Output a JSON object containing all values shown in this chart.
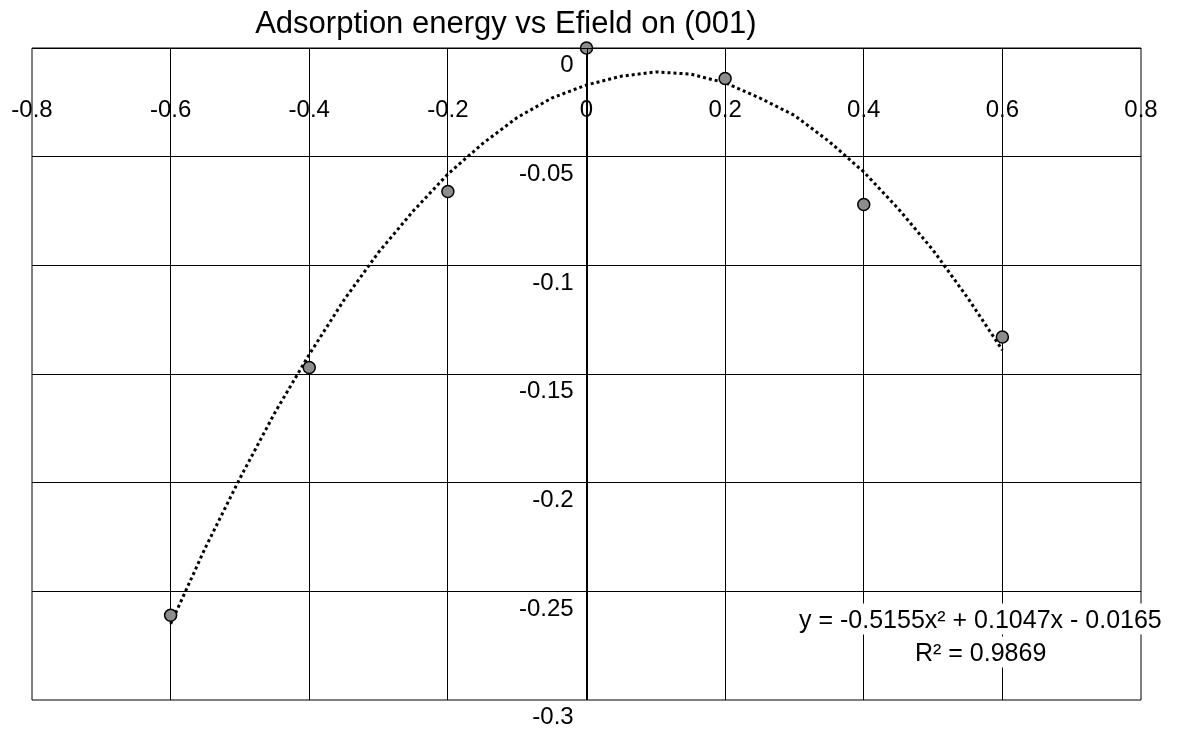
{
  "chart_data": {
    "type": "scatter",
    "title": "Adsorption energy vs Efield on (001)",
    "x": [
      -0.6,
      -0.4,
      -0.2,
      0,
      0.2,
      0.4,
      0.6
    ],
    "series": [
      {
        "color": "#8c8c8c",
        "marker": "circle",
        "values": [
          -0.261,
          -0.147,
          -0.066,
          0,
          -0.014,
          -0.072,
          -0.133
        ]
      },
      {
        "type": "line",
        "color": "#000000",
        "marker": "none",
        "line_style": "dotted",
        "x": [
          -0.6,
          -0.55,
          -0.5,
          -0.45,
          -0.4,
          -0.35,
          -0.3,
          -0.25,
          -0.2,
          -0.15,
          -0.1,
          -0.05,
          0,
          0.05,
          0.1,
          0.15,
          0.2,
          0.25,
          0.3,
          0.35,
          0.4,
          0.45,
          0.5,
          0.55,
          0.6
        ],
        "values": [
          -0.265,
          -0.23,
          -0.198,
          -0.168,
          -0.141,
          -0.116,
          -0.094,
          -0.075,
          -0.058,
          -0.044,
          -0.032,
          -0.023,
          -0.017,
          -0.013,
          -0.011,
          -0.012,
          -0.016,
          -0.023,
          -0.031,
          -0.043,
          -0.057,
          -0.074,
          -0.093,
          -0.115,
          -0.139
        ]
      }
    ],
    "xlim": [
      -0.8,
      0.8
    ],
    "xticks": [
      -0.8,
      -0.6,
      -0.4,
      -0.2,
      0,
      0.2,
      0.4,
      0.6,
      0.8
    ],
    "ylim": [
      -0.3,
      0
    ],
    "yticks": [
      0,
      -0.05,
      -0.1,
      -0.15,
      -0.2,
      -0.25,
      -0.3
    ],
    "grid": true,
    "annotations": [
      "y = -0.5155x² + 0.1047x - 0.0165",
      "R² = 0.9869"
    ]
  }
}
